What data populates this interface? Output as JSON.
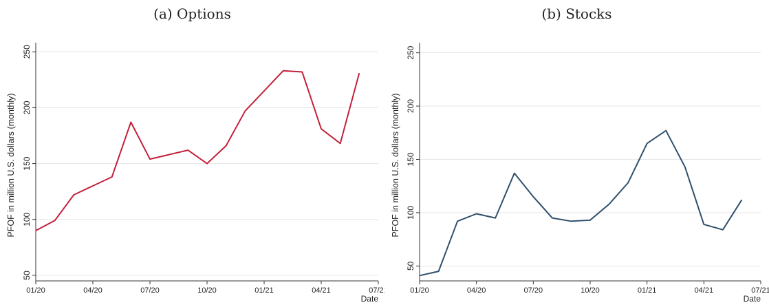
{
  "chart_data": [
    {
      "type": "line",
      "title": "(a) Options",
      "xlabel": "Date",
      "ylabel": "PFOF in million U.S. dollars (monthly)",
      "x_ticks": [
        "01/20",
        "04/20",
        "07/20",
        "10/20",
        "01/21",
        "04/21",
        "07/21"
      ],
      "y_ticks": [
        50,
        100,
        150,
        200,
        250
      ],
      "ylim": [
        45,
        252
      ],
      "grid": true,
      "line_color": "#c3203b",
      "series": [
        {
          "x": [
            "01/20",
            "02/20",
            "03/20",
            "04/20",
            "05/20",
            "06/20",
            "07/20",
            "08/20",
            "09/20",
            "10/20",
            "11/20",
            "12/20",
            "01/21",
            "02/21",
            "03/21",
            "04/21",
            "05/21",
            "06/21"
          ],
          "values": [
            90,
            99,
            122,
            130,
            138,
            187,
            154,
            158,
            162,
            150,
            166,
            197,
            215,
            233,
            232,
            181,
            168,
            231
          ]
        }
      ]
    },
    {
      "type": "line",
      "title": "(b) Stocks",
      "xlabel": "Date",
      "ylabel": "PFOF in million U.S. dollars (monthly)",
      "x_ticks": [
        "01/20",
        "04/20",
        "07/20",
        "10/20",
        "01/21",
        "04/21",
        "07/21"
      ],
      "y_ticks": [
        50,
        100,
        150,
        200,
        250
      ],
      "ylim": [
        36,
        253
      ],
      "grid": true,
      "line_color": "#2f4f6b",
      "series": [
        {
          "x": [
            "01/20",
            "02/20",
            "03/20",
            "04/20",
            "05/20",
            "06/20",
            "07/20",
            "08/20",
            "09/20",
            "10/20",
            "11/20",
            "12/20",
            "01/21",
            "02/21",
            "03/21",
            "04/21",
            "05/21",
            "06/21"
          ],
          "values": [
            41,
            45,
            92,
            99,
            95,
            137,
            115,
            95,
            92,
            93,
            108,
            128,
            165,
            177,
            143,
            89,
            84,
            112
          ]
        }
      ]
    }
  ]
}
